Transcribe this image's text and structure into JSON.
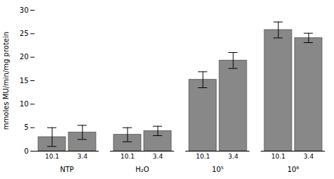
{
  "chart_data": {
    "type": "bar",
    "ylabel": "mmoles MU/min/mg protein",
    "categories": [
      "10.1",
      "3.4",
      "10.1",
      "3.4",
      "10.1",
      "3.4",
      "10.1",
      "3.4"
    ],
    "group_labels": [
      "NTP",
      "H₂O",
      "10⁵",
      "10⁸"
    ],
    "values": [
      3.0,
      4.0,
      3.5,
      4.3,
      15.2,
      19.3,
      25.8,
      24.1
    ],
    "errors": [
      2.0,
      1.5,
      1.5,
      1.0,
      1.7,
      1.7,
      1.7,
      1.0
    ],
    "color": "#888888",
    "ylim": [
      0,
      30
    ],
    "yticks": [
      0,
      5,
      10,
      15,
      20,
      25,
      30
    ],
    "grid": false
  }
}
